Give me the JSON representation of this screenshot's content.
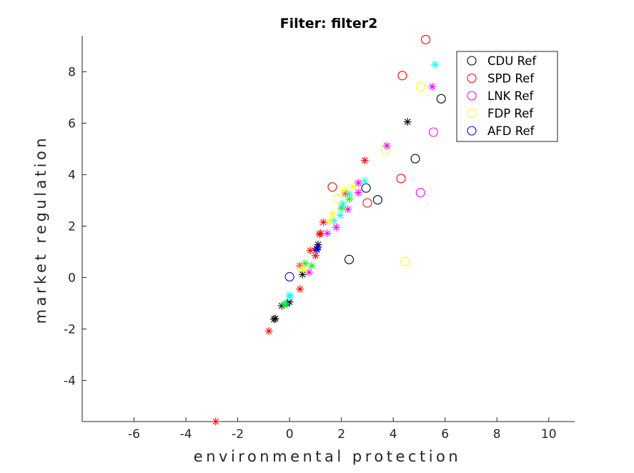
{
  "chart_data": {
    "type": "scatter",
    "title": "Filter: filter2",
    "xlabel": "environmental protection",
    "ylabel": "market regulation",
    "xlim": [
      -8,
      11
    ],
    "ylim": [
      -5.6,
      9.4
    ],
    "xticks": [
      -6,
      -4,
      -2,
      0,
      2,
      4,
      6,
      8,
      10
    ],
    "yticks": [
      -4,
      -2,
      0,
      2,
      4,
      6,
      8
    ],
    "xtick_labels": [
      "-6",
      "-4",
      "-2",
      "0",
      "2",
      "4",
      "6",
      "8",
      "10"
    ],
    "ytick_labels": [
      "-4",
      "-2",
      "0",
      "2",
      "4",
      "6",
      "8"
    ],
    "grid": false,
    "legend_position": "top-right",
    "legend": [
      {
        "label": "CDU Ref",
        "color": "#000000",
        "marker": "circle"
      },
      {
        "label": "SPD Ref",
        "color": "#ff0000",
        "marker": "circle"
      },
      {
        "label": "LNK Ref",
        "color": "#ff00ff",
        "marker": "circle"
      },
      {
        "label": "FDP Ref",
        "color": "#ffff00",
        "marker": "circle"
      },
      {
        "label": "AFD Ref",
        "color": "#0000ff",
        "marker": "circle"
      }
    ],
    "series": [
      {
        "color": "#000000",
        "marker": "circle",
        "points": [
          [
            5.85,
            6.95
          ],
          [
            4.85,
            4.62
          ],
          [
            2.95,
            3.48
          ],
          [
            3.4,
            3.02
          ],
          [
            2.3,
            0.7
          ]
        ]
      },
      {
        "color": "#ff0000",
        "marker": "circle",
        "points": [
          [
            5.25,
            9.25
          ],
          [
            4.35,
            7.85
          ],
          [
            1.65,
            3.52
          ],
          [
            4.3,
            3.85
          ],
          [
            3.0,
            2.9
          ]
        ]
      },
      {
        "color": "#ff00ff",
        "marker": "circle",
        "points": [
          [
            5.55,
            5.65
          ],
          [
            5.05,
            3.3
          ]
        ]
      },
      {
        "color": "#ffff00",
        "marker": "circle",
        "points": [
          [
            5.05,
            7.42
          ],
          [
            3.7,
            4.98
          ],
          [
            1.85,
            3.05
          ],
          [
            4.45,
            0.62
          ]
        ]
      },
      {
        "color": "#0000ff",
        "marker": "circle",
        "points": [
          [
            0.0,
            0.03
          ]
        ]
      },
      {
        "color": "#000000",
        "marker": "star",
        "points": [
          [
            4.55,
            6.05
          ],
          [
            1.1,
            1.28
          ],
          [
            1.05,
            1.12
          ],
          [
            0.5,
            0.12
          ],
          [
            0.0,
            -0.95
          ],
          [
            -0.1,
            -1.02
          ],
          [
            -0.3,
            -1.1
          ],
          [
            -0.55,
            -1.6
          ],
          [
            -0.6,
            -1.62
          ]
        ]
      },
      {
        "color": "#ff0000",
        "marker": "star",
        "points": [
          [
            2.9,
            4.55
          ],
          [
            2.15,
            3.28
          ],
          [
            1.3,
            2.15
          ],
          [
            1.15,
            1.68
          ],
          [
            1.2,
            1.72
          ],
          [
            0.8,
            1.05
          ],
          [
            1.0,
            0.85
          ],
          [
            0.4,
            0.45
          ],
          [
            0.4,
            -0.45
          ],
          [
            -0.8,
            -2.08
          ],
          [
            -2.85,
            -5.6
          ]
        ]
      },
      {
        "color": "#00ffff",
        "marker": "star",
        "points": [
          [
            5.6,
            8.28
          ],
          [
            2.9,
            3.75
          ],
          [
            2.3,
            3.25
          ],
          [
            2.05,
            2.85
          ],
          [
            1.95,
            2.42
          ],
          [
            1.7,
            2.2
          ],
          [
            0.0,
            -0.68
          ],
          [
            0.0,
            -0.75
          ],
          [
            -0.15,
            -1.0
          ]
        ]
      },
      {
        "color": "#ff00ff",
        "marker": "star",
        "points": [
          [
            5.5,
            7.42
          ],
          [
            3.75,
            5.12
          ],
          [
            2.65,
            3.68
          ],
          [
            2.65,
            3.3
          ],
          [
            2.25,
            2.65
          ],
          [
            1.8,
            1.95
          ],
          [
            1.45,
            1.72
          ],
          [
            0.75,
            0.2
          ]
        ]
      },
      {
        "color": "#ffff00",
        "marker": "star",
        "points": [
          [
            2.45,
            3.52
          ],
          [
            2.1,
            3.38
          ],
          [
            1.65,
            2.48
          ],
          [
            1.55,
            2.2
          ],
          [
            0.45,
            0.38
          ],
          [
            0.55,
            0.3
          ]
        ]
      },
      {
        "color": "#00ff00",
        "marker": "star",
        "points": [
          [
            2.3,
            3.05
          ],
          [
            2.0,
            2.7
          ],
          [
            0.85,
            0.45
          ],
          [
            0.6,
            0.55
          ],
          [
            -0.2,
            -1.05
          ]
        ]
      },
      {
        "color": "#0000ff",
        "marker": "star",
        "points": [
          [
            1.1,
            1.18
          ],
          [
            1.05,
            1.08
          ]
        ]
      }
    ]
  }
}
